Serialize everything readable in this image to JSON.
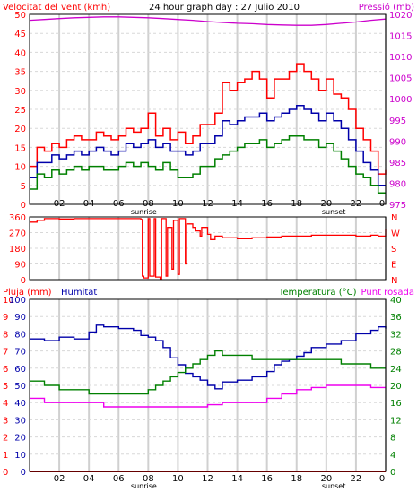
{
  "chart_data": [
    {
      "type": "line",
      "title": "24 hour graph day : 27 Julio 2010",
      "left_axis_label": "Velocitat del vent (kmh)",
      "right_axis_label": "Pressió (mb)",
      "left_ticks": [
        0,
        5,
        10,
        15,
        20,
        25,
        30,
        35,
        40,
        45,
        50
      ],
      "right_ticks": [
        975,
        980,
        985,
        990,
        995,
        1000,
        1005,
        1010,
        1015,
        1020
      ],
      "x_ticks": [
        "02",
        "04",
        "06",
        "08",
        "10",
        "12",
        "14",
        "16",
        "18",
        "20",
        "22",
        "0"
      ],
      "annotations": {
        "sunrise": "sunrise",
        "sunset": "sunset",
        "sunrise_hour": 7.7,
        "sunset_hour": 20.5
      },
      "colors": {
        "gust": "#ff0000",
        "average": "#0000aa",
        "minimum": "#008000",
        "pressure": "#cc00cc",
        "left_axis": "#ff0000",
        "right_axis": "#cc00cc"
      },
      "series": [
        {
          "key": "gust",
          "x": [
            0,
            0.5,
            1,
            1.5,
            2,
            2.5,
            3,
            3.5,
            4,
            4.5,
            5,
            5.5,
            6,
            6.5,
            7,
            7.5,
            8,
            8.5,
            9,
            9.5,
            10,
            10.5,
            11,
            11.5,
            12,
            12.5,
            13,
            13.5,
            14,
            14.5,
            15,
            15.5,
            16,
            16.5,
            17,
            17.5,
            18,
            18.5,
            19,
            19.5,
            20,
            20.5,
            21,
            21.5,
            22,
            22.5,
            23,
            23.5,
            24
          ],
          "values": [
            10,
            15,
            14,
            16,
            15,
            17,
            18,
            17,
            17,
            19,
            18,
            17,
            18,
            20,
            19,
            20,
            24,
            18,
            20,
            17,
            19,
            16,
            18,
            21,
            21,
            24,
            32,
            30,
            32,
            33,
            35,
            33,
            28,
            33,
            33,
            35,
            37,
            35,
            33,
            30,
            33,
            29,
            28,
            25,
            20,
            17,
            14,
            8,
            9
          ]
        },
        {
          "key": "average",
          "x": [
            0,
            0.5,
            1,
            1.5,
            2,
            2.5,
            3,
            3.5,
            4,
            4.5,
            5,
            5.5,
            6,
            6.5,
            7,
            7.5,
            8,
            8.5,
            9,
            9.5,
            10,
            10.5,
            11,
            11.5,
            12,
            12.5,
            13,
            13.5,
            14,
            14.5,
            15,
            15.5,
            16,
            16.5,
            17,
            17.5,
            18,
            18.5,
            19,
            19.5,
            20,
            20.5,
            21,
            21.5,
            22,
            22.5,
            23,
            23.5,
            24
          ],
          "values": [
            7,
            11,
            11,
            13,
            12,
            13,
            14,
            13,
            14,
            15,
            14,
            13,
            14,
            16,
            15,
            16,
            17,
            15,
            16,
            14,
            14,
            13,
            14,
            16,
            16,
            18,
            22,
            21,
            22,
            23,
            23,
            24,
            22,
            23,
            24,
            25,
            26,
            25,
            24,
            22,
            24,
            22,
            20,
            17,
            14,
            11,
            9,
            5,
            5
          ]
        },
        {
          "key": "minimum",
          "x": [
            0,
            0.5,
            1,
            1.5,
            2,
            2.5,
            3,
            3.5,
            4,
            4.5,
            5,
            5.5,
            6,
            6.5,
            7,
            7.5,
            8,
            8.5,
            9,
            9.5,
            10,
            10.5,
            11,
            11.5,
            12,
            12.5,
            13,
            13.5,
            14,
            14.5,
            15,
            15.5,
            16,
            16.5,
            17,
            17.5,
            18,
            18.5,
            19,
            19.5,
            20,
            20.5,
            21,
            21.5,
            22,
            22.5,
            23,
            23.5,
            24
          ],
          "values": [
            4,
            8,
            7,
            9,
            8,
            9,
            10,
            9,
            10,
            10,
            9,
            9,
            10,
            11,
            10,
            11,
            10,
            9,
            11,
            9,
            7,
            7,
            8,
            10,
            10,
            12,
            13,
            14,
            15,
            16,
            16,
            17,
            15,
            16,
            17,
            18,
            18,
            17,
            17,
            15,
            16,
            14,
            12,
            10,
            8,
            7,
            5,
            3,
            3
          ]
        },
        {
          "key": "pressure",
          "axis": "right",
          "x": [
            0,
            1,
            2,
            3,
            4,
            5,
            6,
            7,
            8,
            9,
            10,
            11,
            12,
            13,
            14,
            15,
            16,
            17,
            18,
            19,
            20,
            21,
            22,
            23,
            24
          ],
          "values": [
            1018.6,
            1018.8,
            1019.0,
            1019.2,
            1019.3,
            1019.4,
            1019.4,
            1019.3,
            1019.2,
            1019.0,
            1018.8,
            1018.6,
            1018.3,
            1018.1,
            1017.9,
            1017.8,
            1017.6,
            1017.5,
            1017.4,
            1017.4,
            1017.6,
            1017.9,
            1018.2,
            1018.6,
            1018.9
          ]
        }
      ],
      "xlim": [
        0,
        24
      ],
      "ylim": [
        0,
        50
      ],
      "y2lim": [
        975,
        1020
      ],
      "grid": true
    },
    {
      "type": "line",
      "left_ticks": [
        0,
        90,
        180,
        270,
        360
      ],
      "right_ticks": [
        "N",
        "W",
        "S",
        "E",
        "N"
      ],
      "colors": {
        "direction": "#ff0000",
        "left_axis": "#ff0000",
        "right_axis": "#ff0000"
      },
      "series": [
        {
          "key": "direction",
          "x": [
            0,
            0.5,
            1,
            1.5,
            2,
            3,
            4,
            5,
            6,
            7,
            7.5,
            7.6,
            7.7,
            8.0,
            8.1,
            8.4,
            8.5,
            8.8,
            8.9,
            9.2,
            9.3,
            9.6,
            9.7,
            10.0,
            10.1,
            10.5,
            10.6,
            11.0,
            11.2,
            11.5,
            11.6,
            12.0,
            12.2,
            12.5,
            13,
            14,
            15,
            16,
            17,
            18,
            19,
            20,
            21,
            22,
            23,
            23.5,
            24
          ],
          "values": [
            330,
            340,
            350,
            350,
            348,
            350,
            350,
            350,
            350,
            350,
            345,
            20,
            10,
            350,
            20,
            350,
            15,
            5,
            350,
            20,
            300,
            60,
            340,
            30,
            350,
            90,
            320,
            300,
            280,
            250,
            300,
            260,
            230,
            250,
            240,
            235,
            240,
            245,
            250,
            250,
            255,
            255,
            255,
            250,
            255,
            250,
            290
          ]
        }
      ],
      "xlim": [
        0,
        24
      ],
      "ylim": [
        0,
        360
      ],
      "grid": true
    },
    {
      "type": "line",
      "left_axis_label_1": "Pluja (mm)",
      "left_axis_label_2": "Humitat",
      "right_axis_label_1": "Temperatura (°C)",
      "right_axis_label_2": "Punt rosada",
      "rain_ticks": [
        0,
        1,
        2,
        3,
        4,
        5,
        6,
        7,
        8,
        9,
        10
      ],
      "humidity_ticks": [
        0,
        10,
        20,
        30,
        40,
        50,
        60,
        70,
        80,
        90,
        100
      ],
      "right_ticks": [
        0,
        4,
        8,
        12,
        16,
        20,
        24,
        28,
        32,
        36,
        40
      ],
      "x_ticks": [
        "02",
        "04",
        "06",
        "08",
        "10",
        "12",
        "14",
        "16",
        "18",
        "20",
        "22",
        "0"
      ],
      "annotations": {
        "sunrise": "sunrise",
        "sunset": "sunset",
        "sunrise_hour": 7.7,
        "sunset_hour": 20.5
      },
      "colors": {
        "humidity": "#0000aa",
        "temperature": "#008000",
        "dew_point": "#ee00ee",
        "rain": "#cc0000",
        "rain_axis": "#ff0000",
        "humidity_axis": "#0000aa",
        "right_axis": "#008000"
      },
      "series": [
        {
          "key": "humidity",
          "axis": "humidity",
          "x": [
            0,
            1,
            2,
            3,
            4,
            4.5,
            5,
            6,
            7,
            7.5,
            8,
            8.5,
            9,
            9.5,
            10,
            10.5,
            11,
            11.5,
            12,
            12.5,
            13,
            14,
            15,
            16,
            16.5,
            17,
            17.5,
            18,
            18.5,
            19,
            20,
            21,
            22,
            23,
            23.5,
            24
          ],
          "values": [
            77,
            76,
            78,
            77,
            81,
            85,
            84,
            83,
            82,
            79,
            78,
            76,
            72,
            66,
            62,
            57,
            55,
            53,
            50,
            48,
            52,
            53,
            55,
            58,
            62,
            64,
            65,
            67,
            69,
            72,
            74,
            76,
            80,
            82,
            84,
            83
          ]
        },
        {
          "key": "temperature",
          "axis": "right",
          "x": [
            0,
            1,
            2,
            3,
            4,
            5,
            6,
            7,
            7.5,
            8,
            8.5,
            9,
            9.5,
            10,
            10.5,
            11,
            11.5,
            12,
            12.5,
            13,
            14,
            15,
            16,
            17,
            18,
            19,
            20,
            21,
            22,
            23,
            24
          ],
          "values": [
            21,
            20,
            19,
            19,
            18,
            18,
            18,
            18,
            18,
            19,
            20,
            21,
            22,
            23,
            24,
            25,
            26,
            27,
            28,
            27,
            27,
            26,
            26,
            26,
            26,
            26,
            26,
            25,
            25,
            24,
            24
          ]
        },
        {
          "key": "dew_point",
          "axis": "right",
          "x": [
            0,
            1,
            2,
            3,
            4,
            5,
            6,
            7,
            8,
            9,
            10,
            11,
            12,
            13,
            14,
            15,
            16,
            17,
            18,
            19,
            20,
            21,
            22,
            23,
            24
          ],
          "values": [
            17,
            16,
            16,
            16,
            16,
            15,
            15,
            15,
            15,
            15,
            15,
            15,
            15.5,
            16,
            16,
            16,
            17,
            18,
            19,
            19.5,
            20,
            20,
            20,
            19.5,
            19.5
          ]
        },
        {
          "key": "rain",
          "axis": "rain",
          "x": [
            0,
            24
          ],
          "values": [
            0,
            0
          ]
        }
      ],
      "xlim": [
        0,
        24
      ],
      "ylim": [
        0,
        100
      ],
      "y2lim": [
        0,
        40
      ],
      "grid": true
    }
  ]
}
